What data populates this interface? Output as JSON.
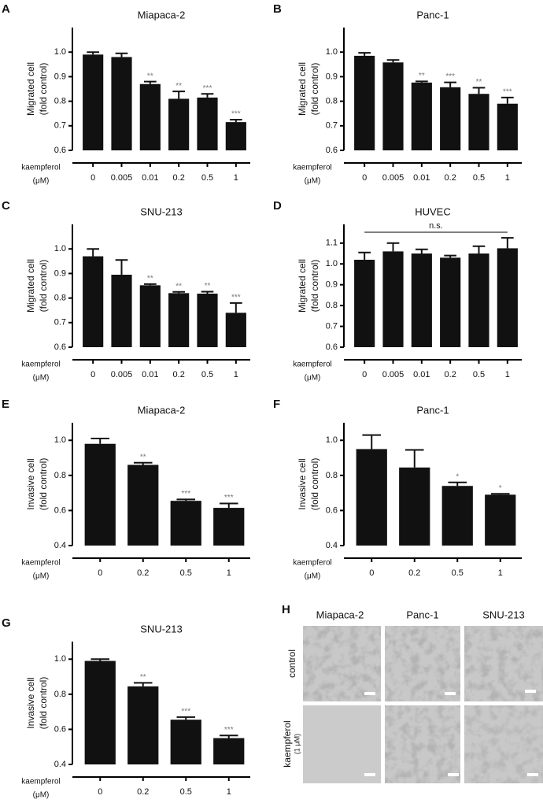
{
  "chart_data": [
    {
      "type": "bar",
      "panel": "A",
      "title": "Miapaca-2",
      "ylabel": [
        "Migrated cell",
        "(fold control)"
      ],
      "xlabel": [
        "kaempferol",
        "(μM)"
      ],
      "categories": [
        "0",
        "0.005",
        "0.01",
        "0.2",
        "0.5",
        "1"
      ],
      "values": [
        0.99,
        0.98,
        0.87,
        0.81,
        0.815,
        0.715
      ],
      "errors": [
        0.01,
        0.015,
        0.01,
        0.03,
        0.015,
        0.01
      ],
      "significance": [
        null,
        null,
        "**",
        "**",
        "***",
        "***"
      ],
      "color": "#111111",
      "ylim": [
        0.6,
        1.1
      ],
      "yticks": [
        0.6,
        0.7,
        0.8,
        0.9,
        {
          "value": 1,
          "label": "1.0"
        }
      ]
    },
    {
      "type": "bar",
      "panel": "B",
      "title": "Panc-1",
      "ylabel": [
        "Migrated cell",
        "(fold control)"
      ],
      "xlabel": [
        "kaempferol",
        "(μM)"
      ],
      "categories": [
        "0",
        "0.005",
        "0.01",
        "0.2",
        "0.5",
        "1"
      ],
      "values": [
        0.985,
        0.958,
        0.876,
        0.857,
        0.83,
        0.79
      ],
      "errors": [
        0.012,
        0.01,
        0.005,
        0.02,
        0.025,
        0.025
      ],
      "significance": [
        null,
        null,
        "**",
        "***",
        "**",
        "***"
      ],
      "color": "#111111",
      "ylim": [
        0.6,
        1.1
      ],
      "yticks": [
        0.6,
        0.7,
        0.8,
        0.9,
        {
          "value": 1,
          "label": "1.0"
        }
      ]
    },
    {
      "type": "bar",
      "panel": "C",
      "title": "SNU-213",
      "ylabel": [
        "Migrated cell",
        "(fold control)"
      ],
      "xlabel": [
        "kaempferol",
        "(μM)"
      ],
      "categories": [
        "0",
        "0.005",
        "0.01",
        "0.2",
        "0.5",
        "1"
      ],
      "values": [
        0.97,
        0.895,
        0.852,
        0.82,
        0.818,
        0.74
      ],
      "errors": [
        0.03,
        0.06,
        0.005,
        0.005,
        0.008,
        0.04
      ],
      "significance": [
        null,
        null,
        "**",
        "**",
        "**",
        "***"
      ],
      "color": "#111111",
      "ylim": [
        0.6,
        1.1
      ],
      "yticks": [
        0.6,
        0.7,
        0.8,
        0.9,
        {
          "value": 1,
          "label": "1.0"
        }
      ]
    },
    {
      "type": "bar",
      "panel": "D",
      "title": "HUVEC",
      "ylabel": [
        "Migrated cell",
        "(fold control)"
      ],
      "xlabel": [
        "kaempferol",
        "(μM)"
      ],
      "categories": [
        "0",
        "0.005",
        "0.01",
        "0.2",
        "0.5",
        "1"
      ],
      "values": [
        1.02,
        1.06,
        1.05,
        1.03,
        1.05,
        1.075
      ],
      "errors": [
        0.035,
        0.04,
        0.02,
        0.01,
        0.035,
        0.05
      ],
      "annotation": "n.s.",
      "color": "#111111",
      "ylim": [
        0.6,
        1.19
      ],
      "yticks": [
        0.6,
        0.7,
        0.8,
        0.9,
        {
          "value": 1,
          "label": "1.0"
        },
        1.1
      ]
    },
    {
      "type": "bar",
      "panel": "E",
      "title": "Miapaca-2",
      "ylabel": [
        "Invasive cell",
        "(fold control)"
      ],
      "xlabel": [
        "kaempferol",
        "(μM)"
      ],
      "categories": [
        "0",
        "0.2",
        "0.5",
        "1"
      ],
      "values": [
        0.98,
        0.86,
        0.655,
        0.615
      ],
      "errors": [
        0.03,
        0.012,
        0.008,
        0.025
      ],
      "significance": [
        null,
        "**",
        "***",
        "***"
      ],
      "color": "#111111",
      "ylim": [
        0.4,
        1.1
      ],
      "yticks": [
        0.4,
        0.6,
        0.8,
        {
          "value": 1,
          "label": "1.0"
        }
      ]
    },
    {
      "type": "bar",
      "panel": "F",
      "title": "Panc-1",
      "ylabel": [
        "Invasive cell",
        "(fold control)"
      ],
      "xlabel": [
        "kaempferol",
        "(μM)"
      ],
      "categories": [
        "0",
        "0.2",
        "0.5",
        "1"
      ],
      "values": [
        0.95,
        0.845,
        0.74,
        0.69
      ],
      "errors": [
        0.08,
        0.1,
        0.02,
        0.005
      ],
      "significance": [
        null,
        null,
        "*",
        "*"
      ],
      "color": "#111111",
      "ylim": [
        0.4,
        1.1
      ],
      "yticks": [
        0.4,
        0.6,
        0.8,
        {
          "value": 1,
          "label": "1.0"
        }
      ]
    },
    {
      "type": "bar",
      "panel": "G",
      "title": "SNU-213",
      "ylabel": [
        "Invasive cell",
        "(fold control)"
      ],
      "xlabel": [
        "kaempferol",
        "(μM)"
      ],
      "categories": [
        "0",
        "0.2",
        "0.5",
        "1"
      ],
      "values": [
        0.99,
        0.845,
        0.655,
        0.55
      ],
      "errors": [
        0.01,
        0.02,
        0.015,
        0.015
      ],
      "significance": [
        null,
        "**",
        "***",
        "***"
      ],
      "color": "#111111",
      "ylim": [
        0.4,
        1.1
      ],
      "yticks": [
        0.4,
        0.6,
        0.8,
        {
          "value": 1,
          "label": "1.0"
        }
      ]
    }
  ],
  "panel_h": {
    "label": "H",
    "columns": [
      "Miapaca-2",
      "Panc-1",
      "SNU-213"
    ],
    "rows": [
      [
        "control"
      ],
      [
        "kaempferol",
        "(1 μM)"
      ]
    ]
  }
}
